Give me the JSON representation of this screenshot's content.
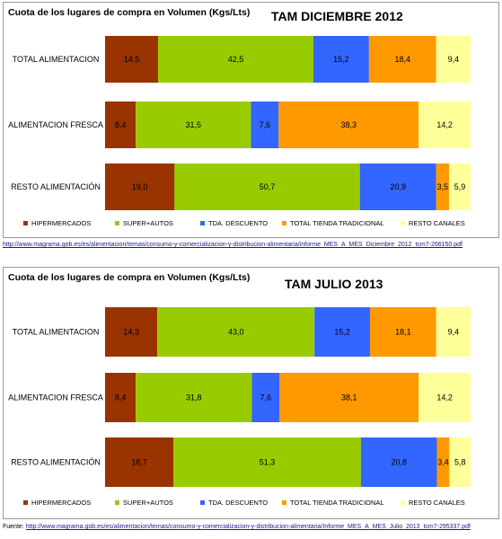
{
  "chart_data": [
    {
      "type": "bar",
      "orientation": "horizontal",
      "stacked": true,
      "title": "Cuota de los lugares de compra en Volumen (Kgs/Lts)",
      "subtitle": "TAM DICIEMBRE 2012",
      "categories": [
        "TOTAL ALIMENTACION",
        "ALIMENTACION FRESCA",
        "RESTO ALIMENTACIÓN"
      ],
      "series": [
        {
          "name": "HIPERMERCADOS",
          "color": "#993300",
          "values": [
            14.5,
            8.4,
            19.0
          ],
          "labels": [
            "14,5",
            "8,4",
            "19,0"
          ]
        },
        {
          "name": "SUPER+AUTOS",
          "color": "#99cc00",
          "values": [
            42.5,
            31.5,
            50.7
          ],
          "labels": [
            "42,5",
            "31,5",
            "50,7"
          ]
        },
        {
          "name": "TDA. DESCUENTO",
          "color": "#3366ff",
          "values": [
            15.2,
            7.6,
            20.9
          ],
          "labels": [
            "15,2",
            "7,6",
            "20,9"
          ]
        },
        {
          "name": "TOTAL TIENDA TRADICIONAL",
          "color": "#ff9900",
          "values": [
            18.4,
            38.3,
            3.5
          ],
          "labels": [
            "18,4",
            "38,3",
            "3,5"
          ]
        },
        {
          "name": "RESTO CANALES",
          "color": "#ffff99",
          "values": [
            9.4,
            14.2,
            5.9
          ],
          "labels": [
            "9,4",
            "14,2",
            "5,9"
          ]
        }
      ],
      "xlim": [
        0,
        100
      ],
      "legend": "bottom",
      "grid": false
    },
    {
      "type": "bar",
      "orientation": "horizontal",
      "stacked": true,
      "title": "Cuota de los lugares de compra en Volumen (Kgs/Lts)",
      "subtitle": "TAM JULIO 2013",
      "categories": [
        "TOTAL ALIMENTACION",
        "ALIMENTACION FRESCA",
        "RESTO ALIMENTACIÓN"
      ],
      "series": [
        {
          "name": "HIPERMERCADOS",
          "color": "#993300",
          "values": [
            14.3,
            8.4,
            18.7
          ],
          "labels": [
            "14,3",
            "8,4",
            "18,7"
          ]
        },
        {
          "name": "SUPER+AUTOS",
          "color": "#99cc00",
          "values": [
            43.0,
            31.8,
            51.3
          ],
          "labels": [
            "43,0",
            "31,8",
            "51,3"
          ]
        },
        {
          "name": "TDA. DESCUENTO",
          "color": "#3366ff",
          "values": [
            15.2,
            7.6,
            20.8
          ],
          "labels": [
            "15,2",
            "7,6",
            "20,8"
          ]
        },
        {
          "name": "TOTAL TIENDA TRADICIONAL",
          "color": "#ff9900",
          "values": [
            18.1,
            38.1,
            3.4
          ],
          "labels": [
            "18,1",
            "38,1",
            "3,4"
          ]
        },
        {
          "name": "RESTO CANALES",
          "color": "#ffff99",
          "values": [
            9.4,
            14.2,
            5.8
          ],
          "labels": [
            "9,4",
            "14,2",
            "5,8"
          ]
        }
      ],
      "xlim": [
        0,
        100
      ],
      "legend": "bottom",
      "grid": false
    }
  ],
  "sources": {
    "first": "http://www.magrama.gob.es/es/alimentacion/temas/consumo-y-comercializacion-y-distribucion-alimentaria/informe_MES_A_MES_Diciembre_2012_tcm7-266150.pdf",
    "second_prefix": "Fuente:",
    "second": "http://www.magrama.gob.es/es/alimentacion/temas/consumo-y-comercializacion-y-distribucion-alimentaria/Informe_MES_A_MES_Julio_2013_tcm7-295337.pdf"
  }
}
